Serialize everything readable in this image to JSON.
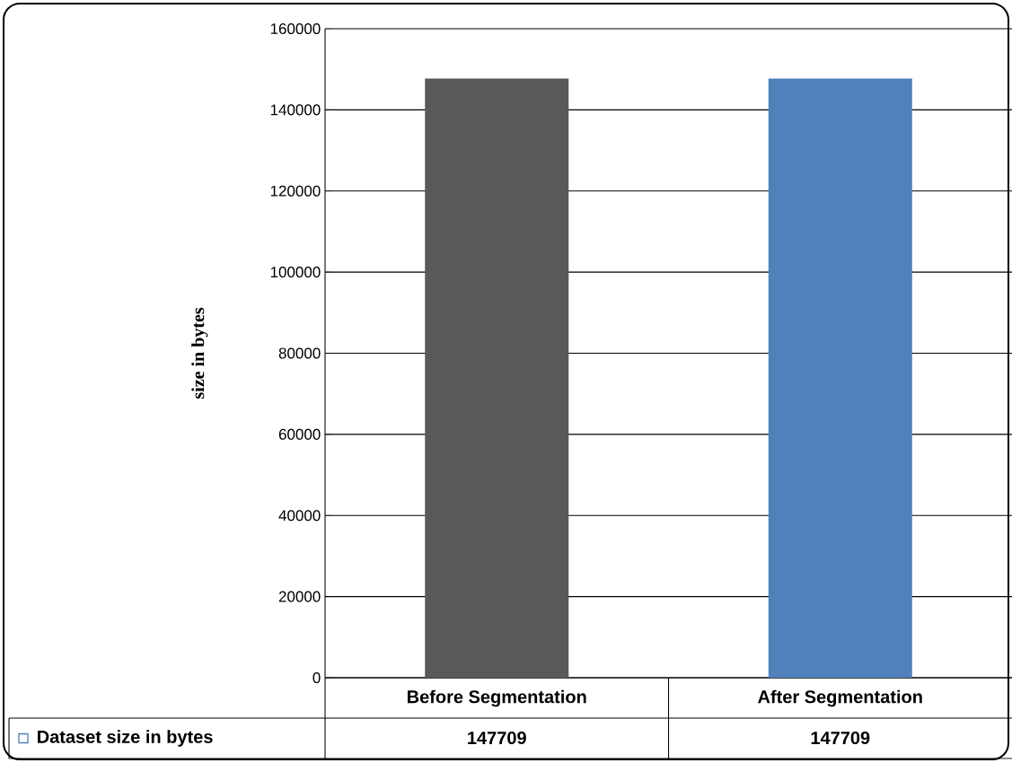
{
  "chart_data": {
    "type": "bar",
    "ylabel": "size in bytes",
    "categories": [
      "Before Segmentation",
      "After Segmentation"
    ],
    "series": [
      {
        "name": "Dataset size in bytes",
        "colors": [
          "#595959",
          "#4f81bd"
        ],
        "values": [
          147709,
          147709
        ]
      }
    ],
    "ylim": [
      0,
      160000
    ],
    "yticks": [
      0,
      20000,
      40000,
      60000,
      80000,
      100000,
      120000,
      140000,
      160000
    ],
    "grid": "y",
    "data_labels": true,
    "legend": "bottom left"
  }
}
